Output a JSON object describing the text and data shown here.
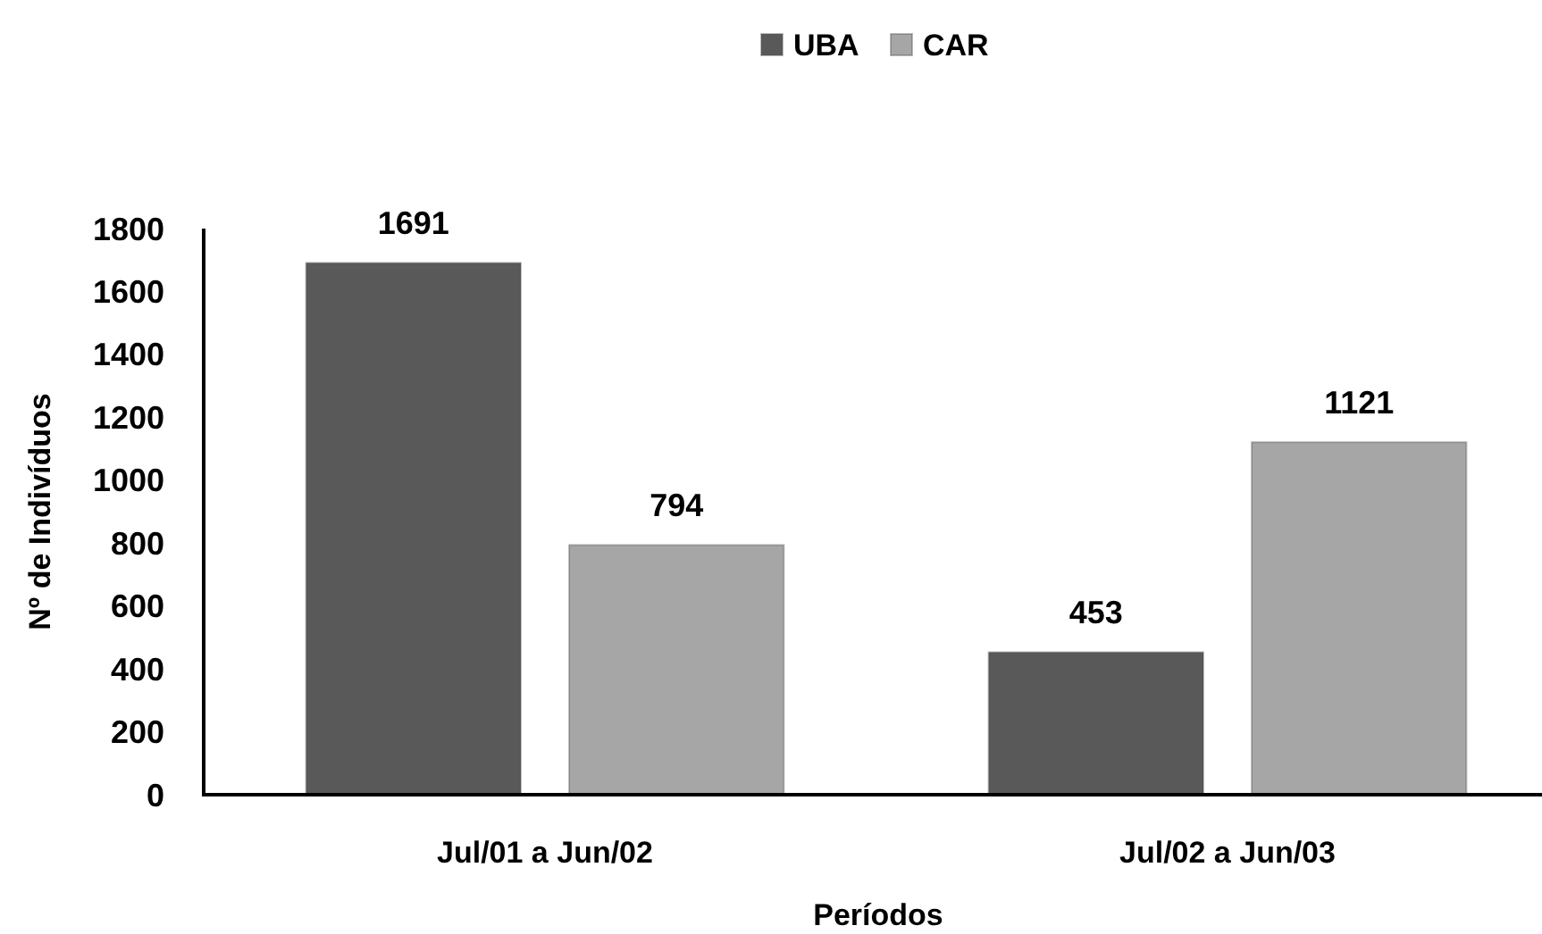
{
  "chart_data": {
    "type": "bar",
    "categories": [
      "Jul/01 a Jun/02",
      "Jul/02 a Jun/03"
    ],
    "series": [
      {
        "name": "UBA",
        "color": "#595959",
        "values": [
          1691,
          453
        ]
      },
      {
        "name": "CAR",
        "color": "#a6a6a6",
        "values": [
          794,
          1121
        ]
      }
    ],
    "xlabel": "Períodos",
    "ylabel": "Nº de Indivíduos",
    "ylim": [
      0,
      1800
    ],
    "yticks": [
      0,
      200,
      400,
      600,
      800,
      1000,
      1200,
      1400,
      1600,
      1800
    ],
    "data_labels": true,
    "legend": "top"
  }
}
